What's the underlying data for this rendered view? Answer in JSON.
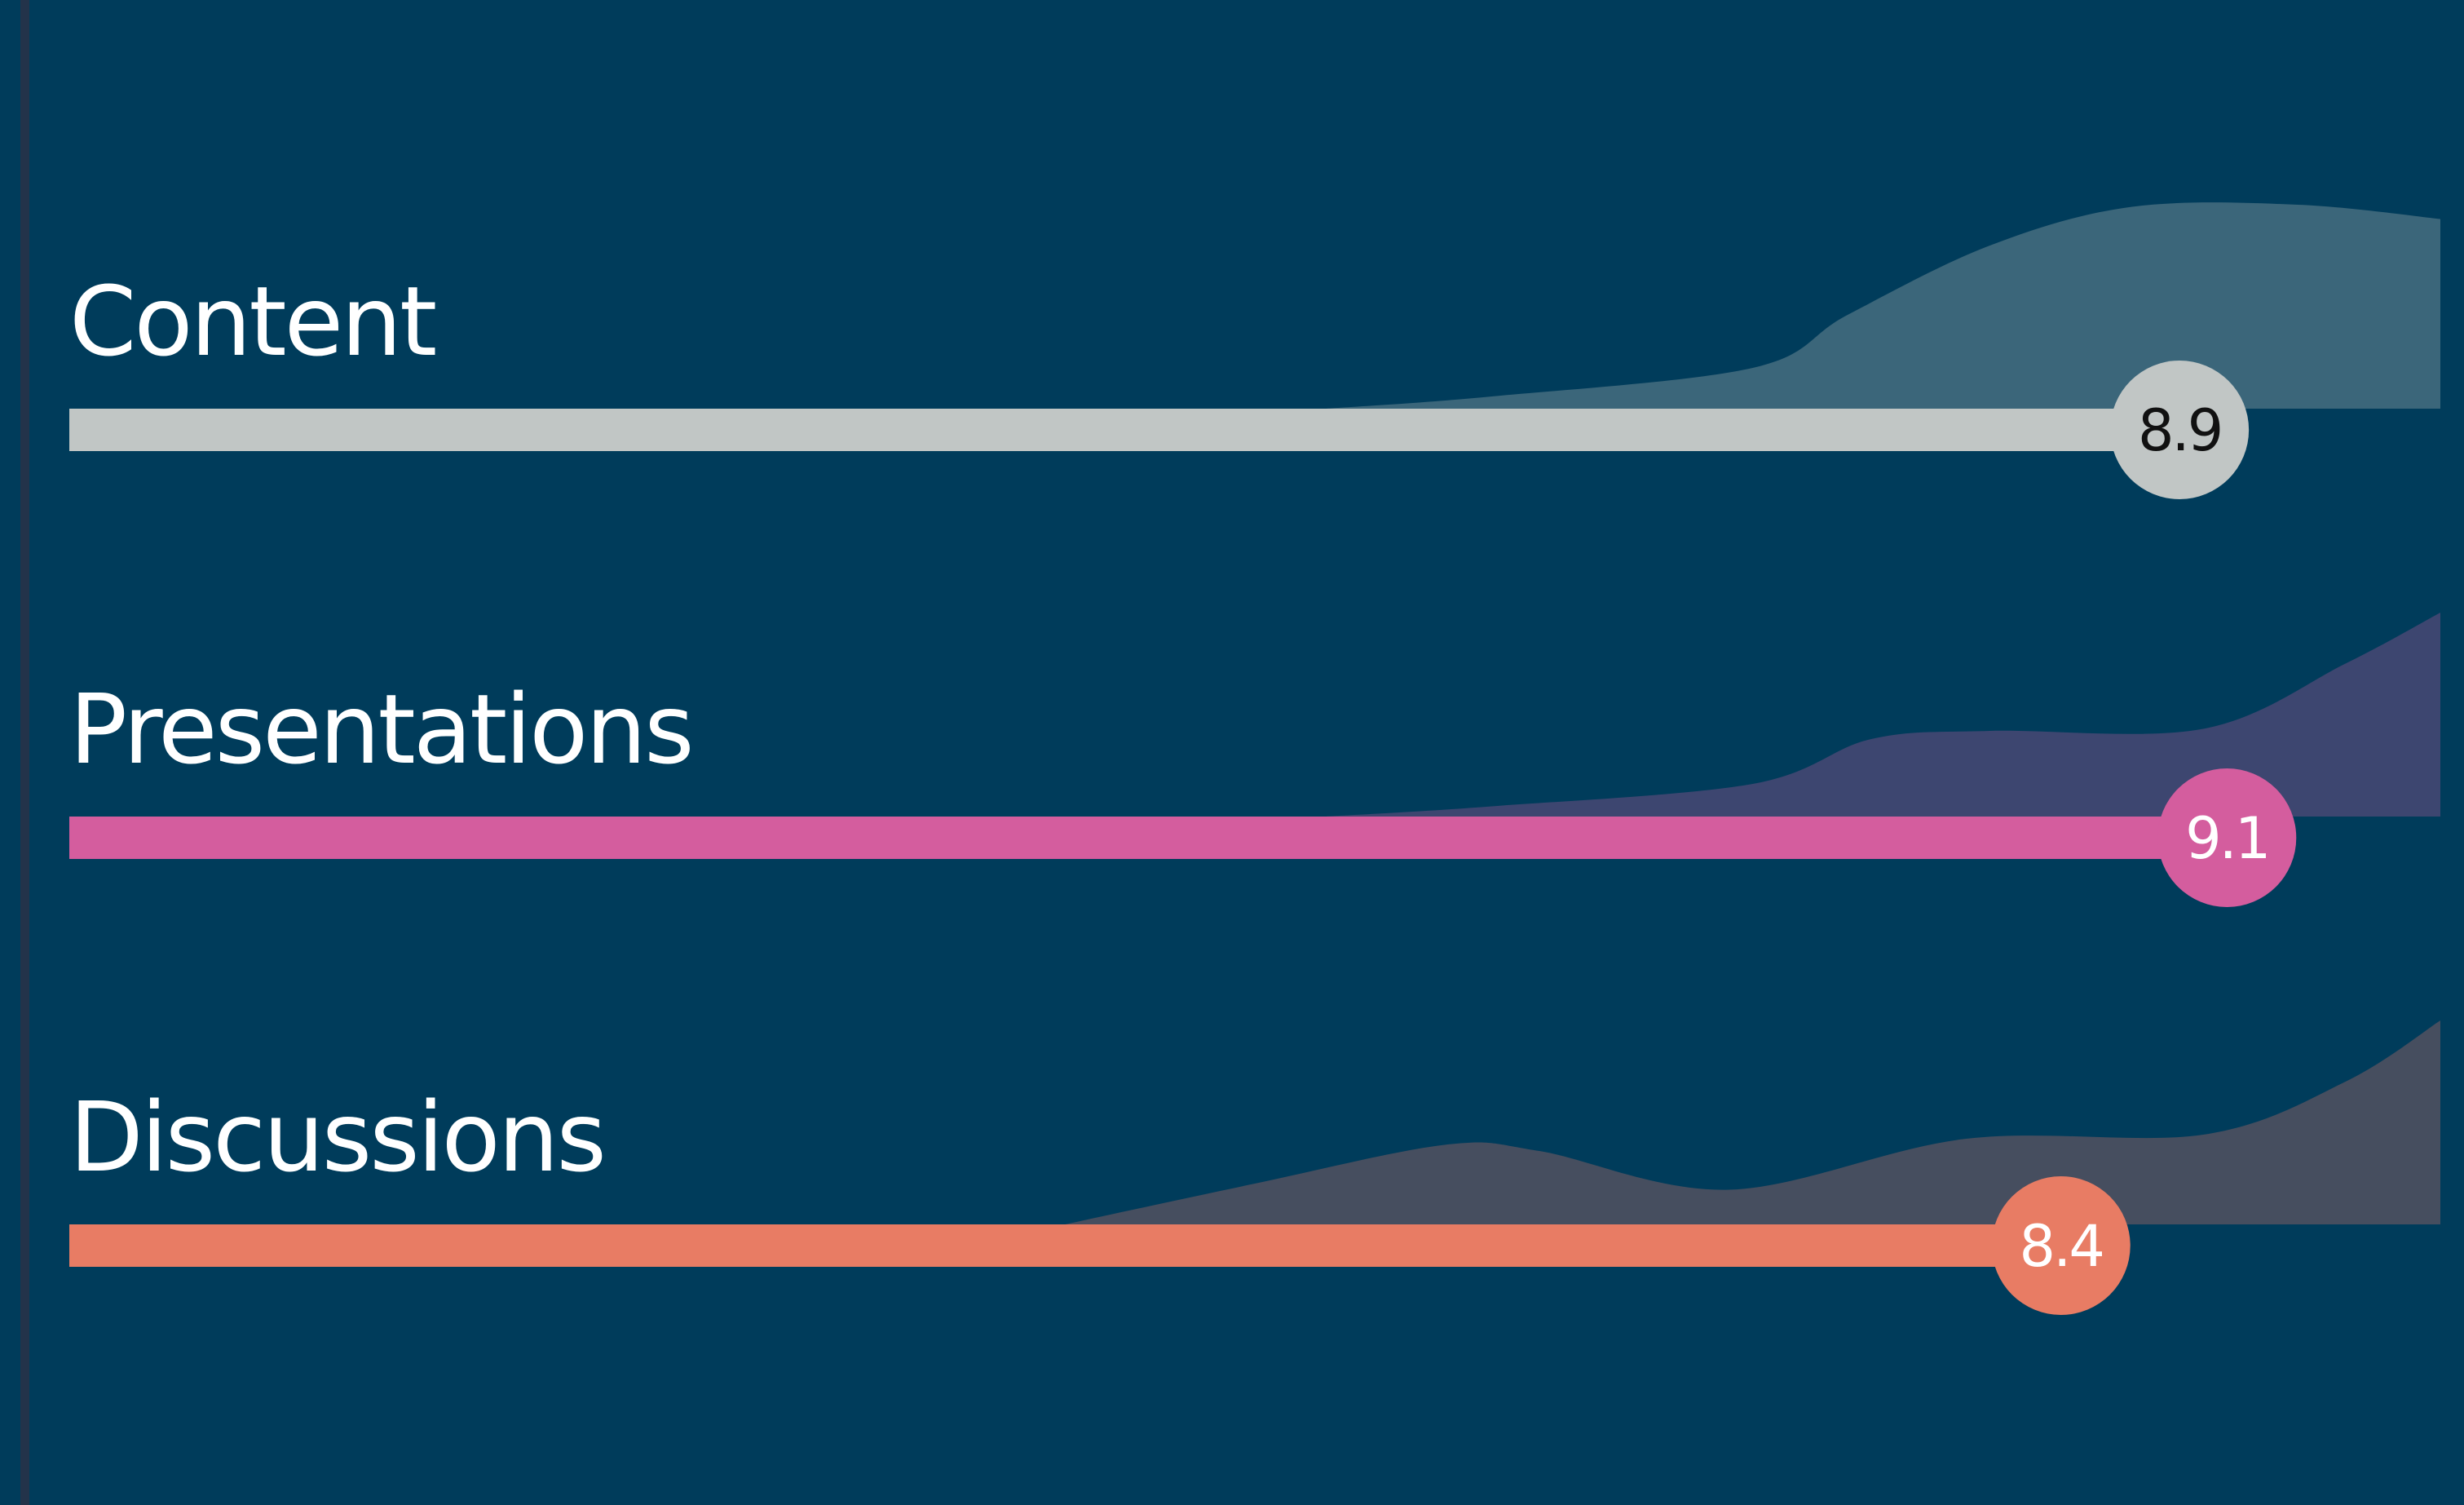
{
  "chart_data": {
    "type": "bar",
    "orientation": "horizontal",
    "xlim": [
      0,
      10
    ],
    "grid": false,
    "categories": [
      "Content",
      "Presentations",
      "Discussions"
    ],
    "values": [
      8.9,
      9.1,
      8.4
    ],
    "value_labels": [
      "8.9",
      "9.1",
      "8.4"
    ],
    "bar_colors": [
      "#c1c6c5",
      "#d45d9e",
      "#e87c64"
    ],
    "value_text_colors": [
      "#111111",
      "#ffffff",
      "#ffffff"
    ],
    "distribution_colors": [
      "#3b667a",
      "#3d4670",
      "#464e5f"
    ],
    "distributions": [
      [
        [
          5.3,
          0.0
        ],
        [
          6.0,
          0.06
        ],
        [
          7.1,
          0.2
        ],
        [
          7.5,
          0.46
        ],
        [
          8.1,
          0.8
        ],
        [
          8.7,
          0.99
        ],
        [
          9.4,
          1.0
        ],
        [
          10.0,
          0.93
        ]
      ],
      [
        [
          5.3,
          0.0
        ],
        [
          6.0,
          0.05
        ],
        [
          7.1,
          0.16
        ],
        [
          7.6,
          0.38
        ],
        [
          8.1,
          0.42
        ],
        [
          9.0,
          0.43
        ],
        [
          9.6,
          0.75
        ],
        [
          10.0,
          1.0
        ]
      ],
      [
        [
          4.2,
          0.0
        ],
        [
          5.0,
          0.2
        ],
        [
          5.8,
          0.39
        ],
        [
          6.2,
          0.36
        ],
        [
          7.0,
          0.17
        ],
        [
          8.0,
          0.42
        ],
        [
          9.0,
          0.44
        ],
        [
          9.6,
          0.7
        ],
        [
          10.0,
          1.0
        ]
      ]
    ]
  }
}
